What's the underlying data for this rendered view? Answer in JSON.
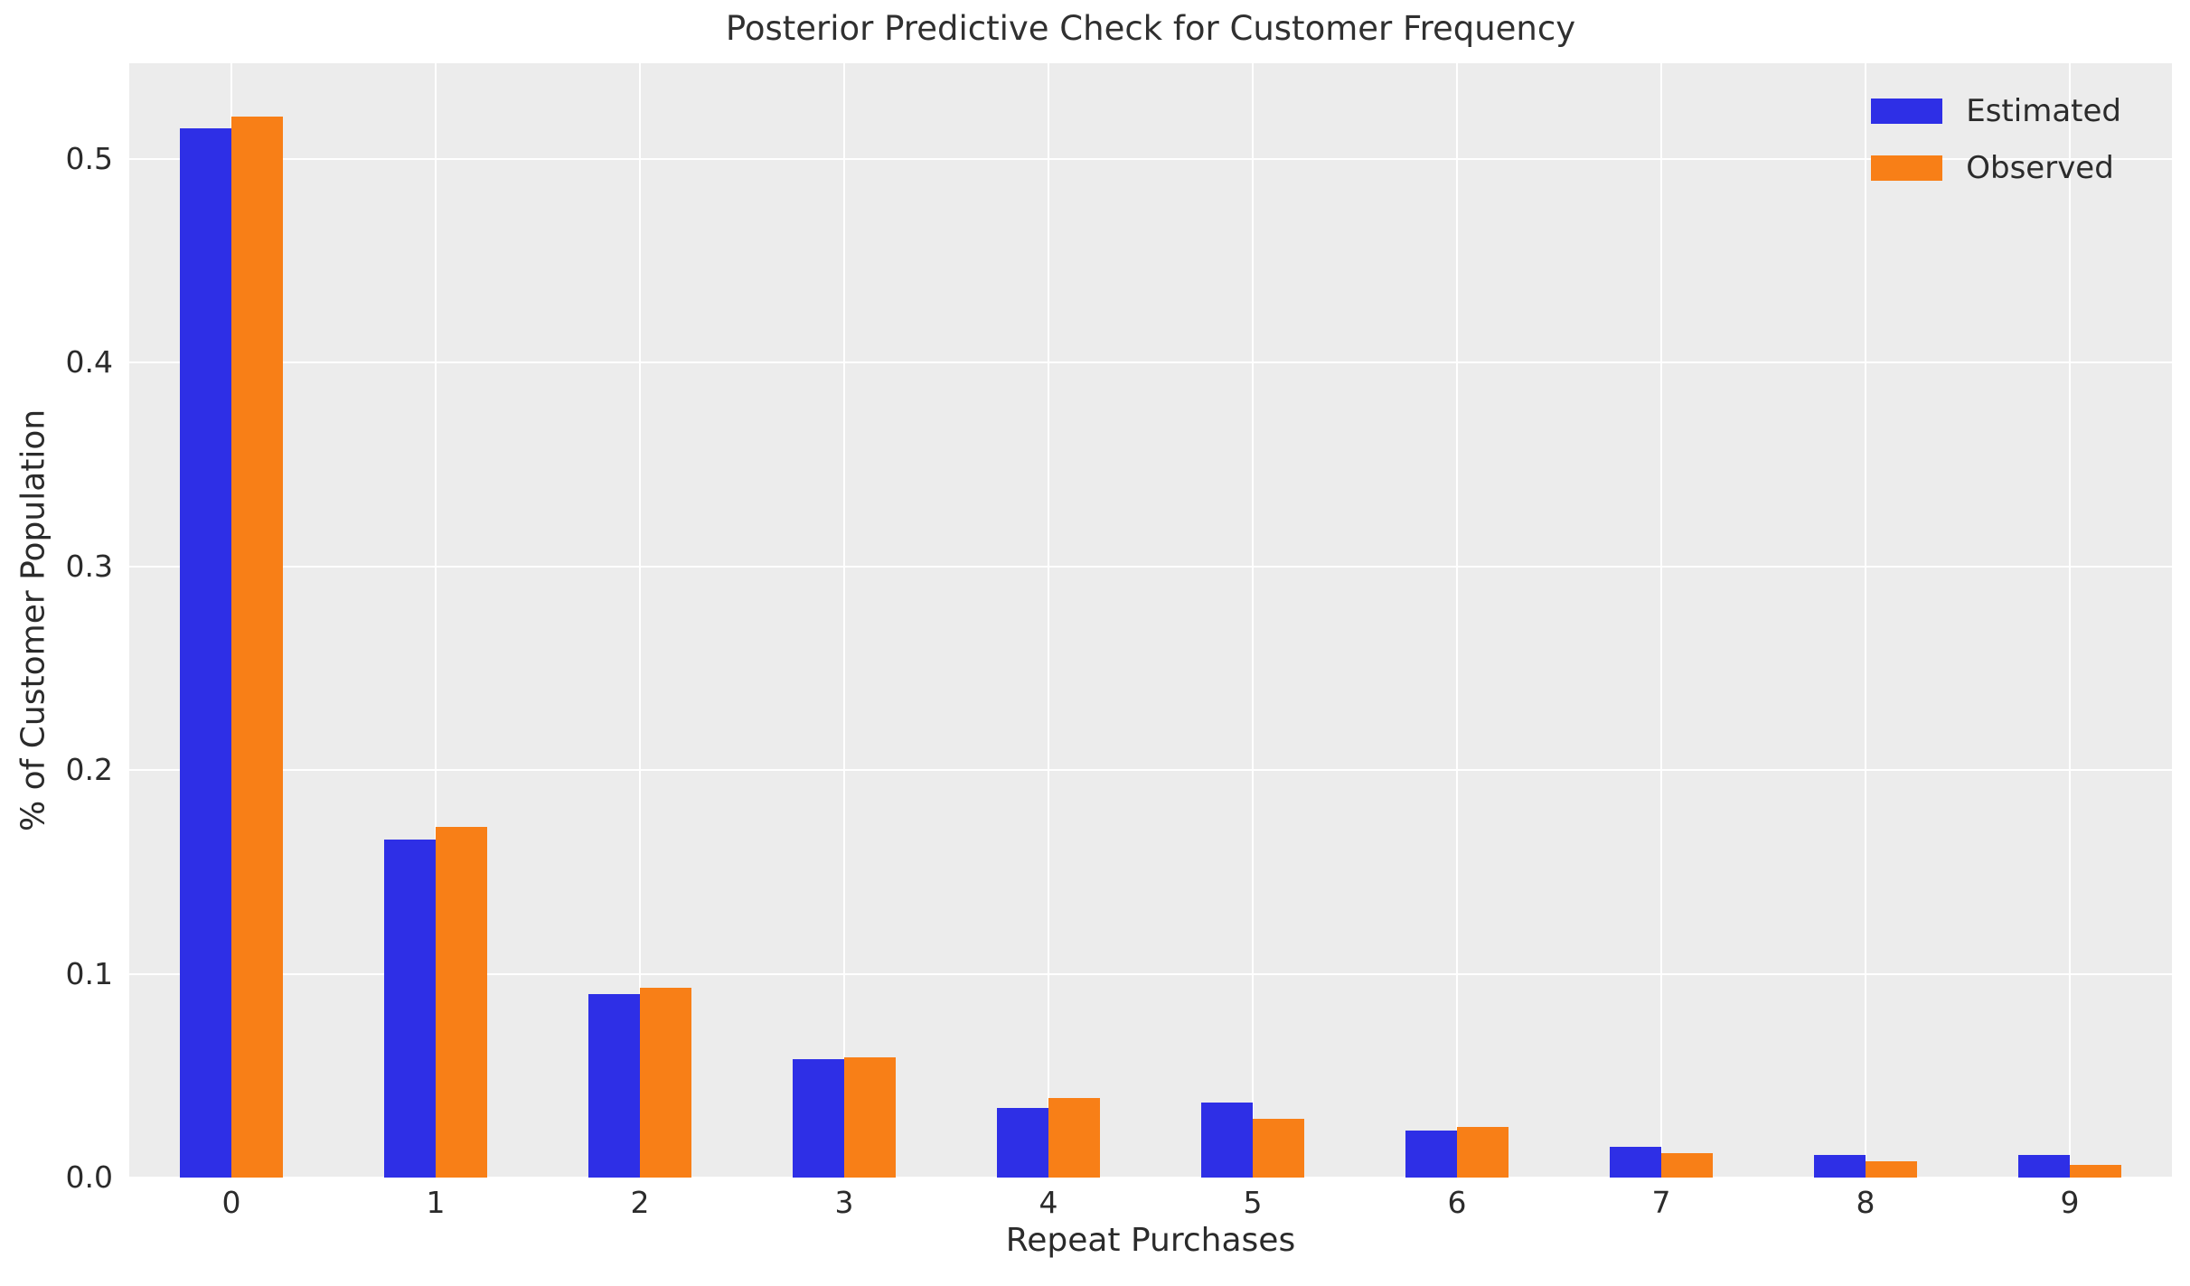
{
  "chart_data": {
    "type": "bar",
    "title": "Posterior Predictive Check for Customer Frequency",
    "xlabel": "Repeat Purchases",
    "ylabel": "% of Customer Population",
    "categories": [
      "0",
      "1",
      "2",
      "3",
      "4",
      "5",
      "6",
      "7",
      "8",
      "9"
    ],
    "series": [
      {
        "name": "Estimated",
        "color": "#2e2fe6",
        "values": [
          0.515,
          0.166,
          0.09,
          0.058,
          0.034,
          0.037,
          0.023,
          0.015,
          0.011,
          0.011
        ]
      },
      {
        "name": "Observed",
        "color": "#f87f17",
        "values": [
          0.521,
          0.172,
          0.093,
          0.059,
          0.039,
          0.029,
          0.025,
          0.012,
          0.008,
          0.006
        ]
      }
    ],
    "ylim": [
      0,
      0.547
    ],
    "yticks": [
      0.0,
      0.1,
      0.2,
      0.3,
      0.4,
      0.5
    ],
    "ytick_labels": [
      "0.0",
      "0.1",
      "0.2",
      "0.3",
      "0.4",
      "0.5"
    ],
    "grid": true,
    "legend_position": "upper right",
    "colors": {
      "plot_background": "#ececec",
      "figure_background": "#ffffff",
      "gridline": "#ffffff",
      "text": "#2b2b2b"
    }
  }
}
